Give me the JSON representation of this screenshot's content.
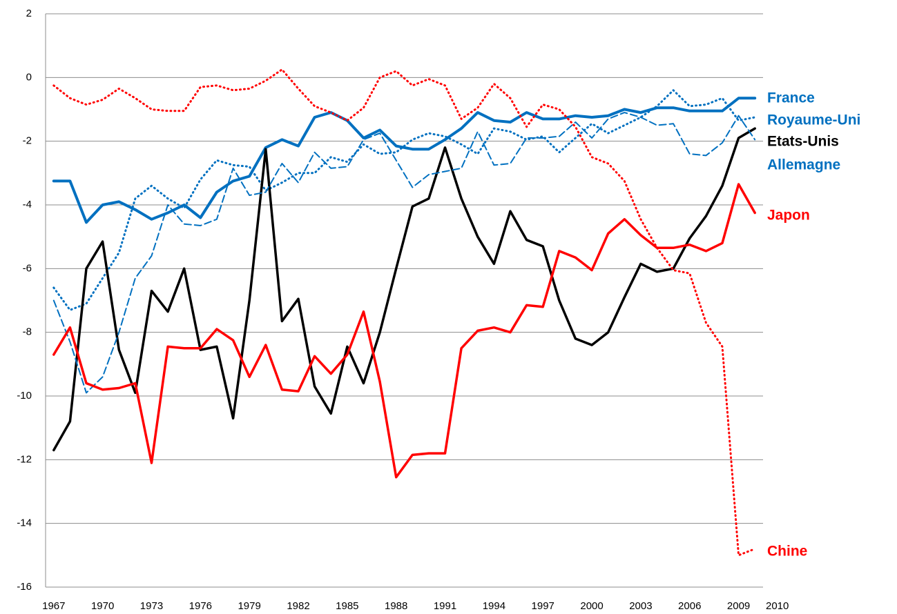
{
  "chart_data": {
    "type": "line",
    "categories": [
      1967,
      null,
      null,
      1970,
      null,
      null,
      1973,
      null,
      null,
      1976,
      null,
      null,
      1979,
      null,
      null,
      1982,
      null,
      null,
      1985,
      null,
      null,
      1988,
      null,
      null,
      1991,
      null,
      null,
      1994,
      null,
      null,
      1997,
      null,
      null,
      2000,
      null,
      null,
      2003,
      null,
      null,
      2006,
      null,
      null,
      2009,
      2010
    ],
    "ylim": [
      -16,
      2
    ],
    "yticks": [
      -16,
      -14,
      -12,
      -10,
      -8,
      -6,
      -4,
      -2,
      0,
      2
    ],
    "grid": true,
    "series": [
      {
        "name": "France",
        "color": "#0070c0",
        "style": "solid",
        "width": 4,
        "values": [
          -3.25,
          -3.25,
          -4.55,
          -4.0,
          -3.9,
          -4.15,
          -4.45,
          -4.25,
          -4.0,
          -4.4,
          -3.6,
          -3.25,
          -3.1,
          -2.2,
          -1.95,
          -2.15,
          -1.25,
          -1.1,
          -1.35,
          -1.9,
          -1.65,
          -2.15,
          -2.25,
          -2.25,
          -1.95,
          -1.6,
          -1.1,
          -1.35,
          -1.4,
          -1.1,
          -1.3,
          -1.3,
          -1.2,
          -1.25,
          -1.2,
          -1.0,
          -1.1,
          -0.95,
          -0.95,
          -1.05,
          -1.05,
          -1.05,
          -0.65,
          -0.65
        ]
      },
      {
        "name": "Royaume-Uni",
        "color": "#0070c0",
        "style": "dotted",
        "width": 3,
        "values": [
          -6.6,
          -7.3,
          -7.1,
          -6.3,
          -5.5,
          -3.8,
          -3.4,
          -3.8,
          -4.1,
          -3.2,
          -2.6,
          -2.75,
          -2.8,
          -3.55,
          -3.3,
          -3.0,
          -3.0,
          -2.5,
          -2.65,
          -2.1,
          -2.4,
          -2.35,
          -1.95,
          -1.75,
          -1.85,
          -2.1,
          -2.4,
          -1.6,
          -1.7,
          -1.95,
          -1.85,
          -2.35,
          -1.9,
          -1.45,
          -1.75,
          -1.5,
          -1.25,
          -0.9,
          -0.4,
          -0.9,
          -0.85,
          -0.65,
          -1.35,
          -1.25
        ]
      },
      {
        "name": "Etats-Unis",
        "color": "#000000",
        "style": "solid",
        "width": 3.5,
        "values": [
          -11.7,
          -10.8,
          -6.0,
          -5.15,
          -8.55,
          -9.9,
          -6.7,
          -7.35,
          -6.0,
          -8.55,
          -8.45,
          -10.7,
          -7.0,
          -2.25,
          -7.65,
          -6.95,
          -9.7,
          -10.55,
          -8.45,
          -9.6,
          -8.0,
          -6.0,
          -4.05,
          -3.8,
          -2.2,
          -3.8,
          -5.0,
          -5.85,
          -4.2,
          -5.1,
          -5.3,
          -7.0,
          -8.2,
          -8.4,
          -8.0,
          -6.9,
          -5.85,
          -6.1,
          -6.0,
          -5.05,
          -4.35,
          -3.4,
          -1.9,
          -1.6
        ]
      },
      {
        "name": "Allemagne",
        "color": "#0070c0",
        "style": "dashed",
        "width": 2,
        "values": [
          -7.0,
          -8.3,
          -9.9,
          -9.4,
          -8.0,
          -6.3,
          -5.6,
          -4.0,
          -4.6,
          -4.65,
          -4.45,
          -2.85,
          -3.7,
          -3.6,
          -2.7,
          -3.3,
          -2.35,
          -2.85,
          -2.8,
          -1.95,
          -1.75,
          -2.6,
          -3.45,
          -3.05,
          -2.95,
          -2.85,
          -1.7,
          -2.75,
          -2.7,
          -1.9,
          -1.9,
          -1.85,
          -1.4,
          -1.9,
          -1.3,
          -1.1,
          -1.25,
          -1.5,
          -1.45,
          -2.4,
          -2.45,
          -2.05,
          -1.2,
          -1.95
        ]
      },
      {
        "name": "Japon",
        "color": "#ff0000",
        "style": "solid",
        "width": 3.5,
        "values": [
          -8.7,
          -7.85,
          -9.6,
          -9.8,
          -9.75,
          -9.6,
          -12.1,
          -8.45,
          -8.5,
          -8.5,
          -7.9,
          -8.25,
          -9.4,
          -8.4,
          -9.8,
          -9.85,
          -8.75,
          -9.3,
          -8.7,
          -7.35,
          -9.55,
          -12.55,
          -11.85,
          -11.8,
          -11.8,
          -8.5,
          -7.95,
          -7.85,
          -8.0,
          -7.15,
          -7.2,
          -5.45,
          -5.65,
          -6.05,
          -4.9,
          -4.45,
          -4.95,
          -5.35,
          -5.35,
          -5.25,
          -5.45,
          -5.2,
          -3.35,
          -4.25
        ]
      },
      {
        "name": "Chine",
        "color": "#ff0000",
        "style": "dotted",
        "width": 3,
        "values": [
          -0.25,
          -0.65,
          -0.85,
          -0.7,
          -0.35,
          -0.65,
          -1.0,
          -1.05,
          -1.05,
          -0.3,
          -0.25,
          -0.4,
          -0.35,
          -0.1,
          0.25,
          -0.35,
          -0.9,
          -1.1,
          -1.35,
          -0.95,
          0.0,
          0.2,
          -0.25,
          -0.05,
          -0.25,
          -1.3,
          -0.95,
          -0.2,
          -0.65,
          -1.55,
          -0.85,
          -1.0,
          -1.55,
          -2.5,
          -2.7,
          -3.25,
          -4.45,
          -5.35,
          -6.05,
          -6.15,
          -7.7,
          -8.45,
          -15.0,
          -14.8
        ]
      }
    ]
  }
}
